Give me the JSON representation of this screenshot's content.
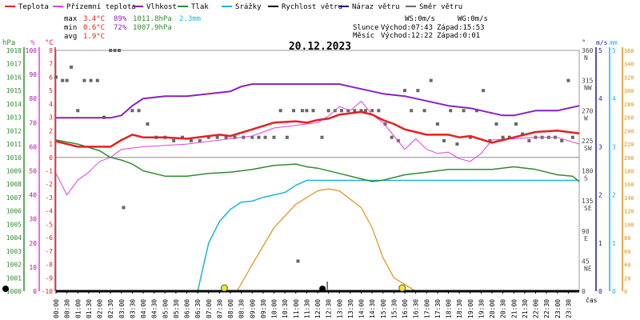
{
  "legend": [
    {
      "label": "Teplota",
      "color": "#e52020"
    },
    {
      "label": "Přízemní teplota",
      "color": "#e040e0"
    },
    {
      "label": "Vlhkost",
      "color": "#8a1fc4"
    },
    {
      "label": "Tlak",
      "color": "#2e8b2e"
    },
    {
      "label": "Srážky",
      "color": "#1cb4d8"
    },
    {
      "label": "Rychlost větru",
      "color": "#000000"
    },
    {
      "label": "Náraz větru",
      "color": "#1a1a8c"
    },
    {
      "label": "Směr větru",
      "color": "#666666"
    }
  ],
  "stats": {
    "max_label": "max",
    "min_label": "min",
    "avg_label": "avg",
    "max_temp": "3.4°C",
    "max_hum": "89%",
    "max_press": "1011.8hPa",
    "max_rain": "2.3mm",
    "min_temp": "0.6°C",
    "min_hum": "72%",
    "min_press": "1007.9hPa",
    "avg_temp": "1.9°C"
  },
  "wind": {
    "ws": "WS:0m/s",
    "wg": "WG:0m/s"
  },
  "sun": {
    "label": "Slunce",
    "rise": "Východ:07:43",
    "set": "Západ:15:53"
  },
  "moon": {
    "label": "Měsíc",
    "rise": "Východ:12:22",
    "set": "Západ:0:01"
  },
  "date": "20.12.2023",
  "chart_data": {
    "type": "line",
    "x_tick_labels": [
      "00:00",
      "00:30",
      "01:00",
      "01:30",
      "02:00",
      "02:30",
      "03:00",
      "03:30",
      "04:00",
      "04:30",
      "05:00",
      "05:30",
      "06:00",
      "06:30",
      "07:00",
      "07:30",
      "08:00",
      "08:30",
      "09:00",
      "09:30",
      "10:00",
      "10:30",
      "11:00",
      "11:30",
      "12:00",
      "12:30",
      "13:00",
      "13:30",
      "14:00",
      "14:30",
      "15:00",
      "15:30",
      "16:00",
      "16:30",
      "17:00",
      "17:30",
      "18:00",
      "18:30",
      "19:00",
      "19:30",
      "20:00",
      "20:30",
      "21:00",
      "21:30",
      "22:00",
      "22:30",
      "23:00",
      "23:30"
    ],
    "x_axis_unit": "čas",
    "axes": {
      "hpa": {
        "unit": "hPa",
        "ticks": [
          1000,
          1001,
          1002,
          1003,
          1004,
          1005,
          1006,
          1007,
          1008,
          1009,
          1010,
          1011,
          1012,
          1013,
          1014,
          1015,
          1016,
          1017,
          1018
        ]
      },
      "pct": {
        "unit": "%",
        "ticks": [
          0,
          10,
          20,
          30,
          40,
          50,
          60,
          70,
          80,
          90,
          100
        ]
      },
      "temp": {
        "unit": "°C",
        "ticks": [
          -10,
          -9,
          -8,
          -7,
          -6,
          -5,
          -4,
          -3,
          -2,
          -1,
          0,
          1,
          2,
          3,
          4,
          5,
          6,
          7,
          8
        ]
      },
      "dir": {
        "unit": "°",
        "ticks": [
          {
            "v": 0,
            "d": ""
          },
          {
            "v": 45,
            "d": "NE"
          },
          {
            "v": 90,
            "d": "E"
          },
          {
            "v": 135,
            "d": "SE"
          },
          {
            "v": 180,
            "d": "S"
          },
          {
            "v": 225,
            "d": "SW"
          },
          {
            "v": 270,
            "d": "W"
          },
          {
            "v": 315,
            "d": "NW"
          },
          {
            "v": 360,
            "d": "N"
          }
        ]
      },
      "ms": {
        "unit": "m/s",
        "ticks": [
          0,
          1,
          2,
          3,
          4,
          5
        ]
      },
      "mm": {
        "unit": "mm",
        "ticks": [
          0,
          1,
          2,
          3,
          4,
          5
        ]
      },
      "moon": {
        "ticks": [
          0,
          20,
          40,
          60,
          80,
          100,
          120,
          140,
          160,
          180,
          200,
          220,
          240,
          260,
          280,
          300,
          320,
          340,
          360
        ]
      }
    },
    "series": [
      {
        "name": "Teplota",
        "unit": "°C",
        "x": [
          0,
          1,
          2,
          2.5,
          3,
          3.5,
          4,
          5,
          6,
          7,
          7.5,
          8,
          9,
          10,
          11,
          11.5,
          12,
          12.5,
          13,
          13.5,
          14,
          14.5,
          15,
          15.5,
          16,
          17,
          18,
          18.5,
          19,
          20,
          21,
          22,
          23,
          24
        ],
        "y": [
          1.2,
          0.8,
          0.8,
          0.8,
          1.3,
          1.7,
          1.5,
          1.5,
          1.4,
          1.6,
          1.7,
          1.6,
          2.1,
          2.6,
          2.7,
          2.6,
          2.8,
          2.9,
          3.2,
          3.3,
          3.4,
          3.2,
          2.8,
          2.5,
          2.1,
          1.7,
          1.7,
          1.5,
          1.6,
          1.1,
          1.5,
          1.9,
          2.0,
          1.8
        ]
      },
      {
        "name": "Přízemní teplota",
        "unit": "°C",
        "x": [
          0,
          0.5,
          1,
          1.5,
          2,
          2.5,
          3,
          4,
          5,
          6,
          7,
          8,
          9,
          10,
          11,
          12,
          12.5,
          13,
          13.5,
          14,
          14.5,
          15,
          15.5,
          16,
          16.5,
          17,
          17.5,
          18,
          18.5,
          19,
          19.5,
          20,
          21,
          22,
          23,
          24
        ],
        "y": [
          -1.2,
          -2.8,
          -1.7,
          -1.1,
          -0.3,
          0,
          0.6,
          0.8,
          0.9,
          1.0,
          1.2,
          1.4,
          1.6,
          2.2,
          2.4,
          2.6,
          3.1,
          3.8,
          3.5,
          4.2,
          3.2,
          2.6,
          1.6,
          0.6,
          1.4,
          0.6,
          0.3,
          0.4,
          -0.1,
          -0.3,
          0.3,
          1.3,
          1.4,
          1.5,
          1.5,
          1.0
        ]
      },
      {
        "name": "Vlhkost",
        "unit": "%",
        "x": [
          0,
          2.5,
          3,
          3.5,
          4,
          5,
          6,
          7,
          8,
          8.5,
          9,
          10,
          11,
          12,
          13,
          13.5,
          14,
          15,
          16,
          17,
          18,
          19,
          20,
          20.5,
          21,
          22,
          23,
          24
        ],
        "y": [
          72,
          72,
          73,
          77,
          80,
          81,
          81,
          82,
          83,
          85,
          86,
          86,
          86,
          86,
          86,
          85,
          84,
          82,
          81,
          79,
          77,
          76,
          74,
          73,
          73,
          75,
          75,
          77
        ]
      },
      {
        "name": "Tlak",
        "unit": "hPa",
        "x": [
          0,
          1,
          2,
          2.5,
          3,
          3.5,
          4,
          5,
          6,
          7,
          8,
          9,
          10,
          11,
          11.5,
          12,
          13,
          13.5,
          14,
          14.5,
          15,
          16,
          17,
          18,
          19,
          20,
          21,
          22,
          23,
          23.7,
          24
        ],
        "y": [
          1011.3,
          1011.0,
          1010.5,
          1010.0,
          1009.8,
          1009.5,
          1009.0,
          1008.6,
          1008.6,
          1008.8,
          1008.9,
          1009.1,
          1009.4,
          1009.5,
          1009.3,
          1009.2,
          1008.8,
          1008.6,
          1008.4,
          1008.2,
          1008.3,
          1008.7,
          1008.9,
          1009.1,
          1009.1,
          1009.1,
          1009.3,
          1009.1,
          1008.7,
          1008.6,
          1008.2
        ]
      },
      {
        "name": "Srážky",
        "unit": "mm",
        "x": [
          0,
          6.5,
          7,
          7.5,
          8,
          8.5,
          9,
          9.5,
          10,
          10.5,
          11,
          11.5,
          11.7,
          12,
          14,
          16,
          18,
          20,
          22,
          24
        ],
        "y": [
          0,
          0,
          1.0,
          1.45,
          1.7,
          1.85,
          1.87,
          1.95,
          2.0,
          2.05,
          2.2,
          2.3,
          2.3,
          2.3,
          2.3,
          2.3,
          2.3,
          2.3,
          2.3,
          2.3
        ]
      },
      {
        "name": "Rychlost větru",
        "unit": "m/s",
        "x": [
          0,
          24
        ],
        "y": [
          0,
          0
        ]
      },
      {
        "name": "Náraz větru",
        "unit": "m/s",
        "x": [
          0,
          24
        ],
        "y": [
          0,
          0
        ]
      },
      {
        "name": "Měsíc",
        "unit": "°",
        "x": [
          8.3,
          9,
          10,
          11,
          12,
          12.5,
          13,
          14,
          14.5,
          15,
          15.5,
          16.5
        ],
        "y": [
          0,
          40,
          95,
          130,
          150,
          153,
          150,
          125,
          95,
          50,
          20,
          0
        ]
      },
      {
        "name": "Směr větru",
        "unit": "°",
        "type": "scatter",
        "x": [
          0,
          0.3,
          0.5,
          0.7,
          1.0,
          1.3,
          1.6,
          1.9,
          2.2,
          2.5,
          2.7,
          2.9,
          3.1,
          3.5,
          3.8,
          4.2,
          4.6,
          5,
          5.4,
          5.8,
          6.2,
          6.6,
          7,
          7.4,
          7.8,
          8.2,
          8.6,
          9,
          9.3,
          9.6,
          10,
          10.3,
          10.6,
          10.9,
          11.1,
          11.3,
          11.5,
          11.8,
          12.2,
          12.5,
          12.8,
          13.1,
          13.4,
          13.7,
          14,
          14.2,
          14.5,
          14.8,
          15.1,
          15.4,
          15.7,
          16,
          16.3,
          16.6,
          16.9,
          17.2,
          17.5,
          17.8,
          18.1,
          18.4,
          18.7,
          19,
          19.3,
          19.6,
          19.9,
          20.2,
          20.5,
          20.8,
          21.1,
          21.4,
          21.7,
          22,
          22.3,
          22.6,
          22.9,
          23.2,
          23.5,
          23.7
        ],
        "y": [
          320,
          315,
          315,
          335,
          270,
          315,
          315,
          315,
          260,
          360,
          360,
          360,
          125,
          270,
          270,
          250,
          230,
          230,
          225,
          230,
          225,
          225,
          230,
          230,
          230,
          230,
          230,
          230,
          230,
          230,
          230,
          270,
          230,
          270,
          45,
          270,
          270,
          270,
          230,
          270,
          270,
          270,
          270,
          270,
          270,
          270,
          270,
          270,
          250,
          230,
          225,
          300,
          270,
          300,
          270,
          315,
          250,
          225,
          270,
          220,
          270,
          230,
          270,
          300,
          225,
          250,
          230,
          230,
          250,
          235,
          225,
          230,
          230,
          230,
          230,
          225,
          315,
          230
        ]
      }
    ],
    "markers": [
      {
        "name": "sunrise",
        "time": "07:43",
        "x": 7.72
      },
      {
        "name": "sunset",
        "time": "15:53",
        "x": 15.88
      },
      {
        "name": "moonrise",
        "time": "12:22",
        "x": 12.37
      }
    ]
  }
}
